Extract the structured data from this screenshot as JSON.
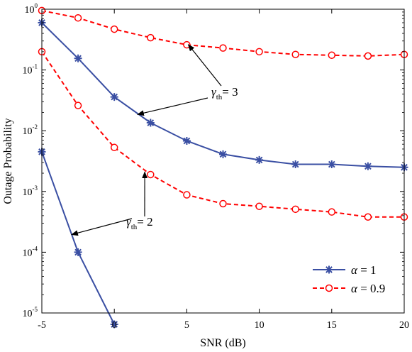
{
  "chart_data": {
    "type": "line",
    "xlabel": "SNR (dB)",
    "ylabel": "Outage Probability",
    "xlim": [
      -5,
      20
    ],
    "ylim": [
      1e-05,
      1
    ],
    "yscale": "log",
    "grid": false,
    "x_ticks": [
      "-5",
      "0",
      "5",
      "10",
      "15",
      "20"
    ],
    "y_ticks": [
      {
        "base": "10",
        "exp": "0"
      },
      {
        "base": "10",
        "exp": "-1"
      },
      {
        "base": "10",
        "exp": "-2"
      },
      {
        "base": "10",
        "exp": "-3"
      },
      {
        "base": "10",
        "exp": "-4"
      },
      {
        "base": "10",
        "exp": "-5"
      }
    ],
    "legend": {
      "position": "bottom-right",
      "entries": [
        {
          "symbol": "α",
          "text": " = 1",
          "series_color": "#3a4fa3",
          "marker": "star",
          "dash": "solid"
        },
        {
          "symbol": "α",
          "text": " = 0.9",
          "series_color": "#ff0000",
          "marker": "circle",
          "dash": "dashed"
        }
      ]
    },
    "series": [
      {
        "alpha": "1",
        "gamma_th": "3",
        "color": "#3a4fa3",
        "marker": "star",
        "dash": "solid",
        "x": [
          -5,
          -2.5,
          0,
          2.5,
          5,
          7.5,
          10,
          12.5,
          15,
          17.5,
          20
        ],
        "y": [
          0.6,
          0.155,
          0.036,
          0.0135,
          0.0068,
          0.0041,
          0.0033,
          0.0028,
          0.0028,
          0.0026,
          0.0025
        ]
      },
      {
        "alpha": "1",
        "gamma_th": "2",
        "color": "#3a4fa3",
        "marker": "star",
        "dash": "solid",
        "x": [
          -5,
          -2.5,
          0
        ],
        "y": [
          0.0045,
          0.0001,
          6.5e-06
        ]
      },
      {
        "alpha": "0.9",
        "gamma_th": "3",
        "color": "#ff0000",
        "marker": "circle",
        "dash": "dashed",
        "x": [
          -5,
          -2.5,
          0,
          2.5,
          5,
          7.5,
          10,
          12.5,
          15,
          17.5,
          20
        ],
        "y": [
          0.95,
          0.72,
          0.47,
          0.34,
          0.26,
          0.23,
          0.2,
          0.18,
          0.175,
          0.17,
          0.18
        ]
      },
      {
        "alpha": "0.9",
        "gamma_th": "2",
        "color": "#ff0000",
        "marker": "circle",
        "dash": "dashed",
        "x": [
          -5,
          -2.5,
          0,
          2.5,
          5,
          7.5,
          10,
          12.5,
          15,
          17.5,
          20
        ],
        "y": [
          0.2,
          0.026,
          0.0053,
          0.0019,
          0.00088,
          0.00063,
          0.00057,
          0.00051,
          0.00046,
          0.00038,
          0.00038
        ]
      }
    ],
    "annotations": [
      {
        "symbol": "γ",
        "sub": "th",
        "text": "= 3",
        "arrows_to": [
          {
            "x": 5.1,
            "y": 0.262
          },
          {
            "x": 1.6,
            "y": 0.0185
          }
        ]
      },
      {
        "symbol": "γ",
        "sub": "th",
        "text": "= 2",
        "arrows_to": [
          {
            "x": -2.95,
            "y": 0.000195
          },
          {
            "x": 2.1,
            "y": 0.0021
          }
        ]
      }
    ]
  }
}
